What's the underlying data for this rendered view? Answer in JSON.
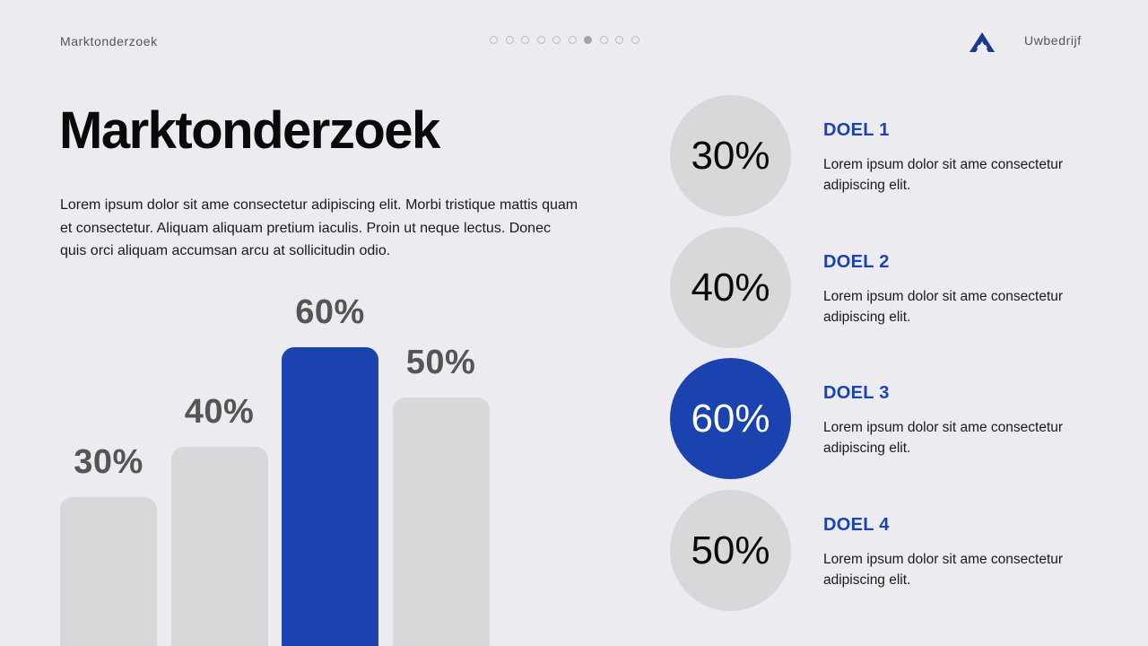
{
  "header": {
    "section_label": "Marktonderzoek",
    "company": "Uwbedrijf",
    "logo_icon": "triangle-logo-icon",
    "pager": {
      "total": 10,
      "active_index": 6
    }
  },
  "main": {
    "title": "Marktonderzoek",
    "intro": "Lorem ipsum dolor sit ame consectetur adipiscing elit. Morbi tristique mattis quam et consectetur. Aliquam aliquam pretium iaculis. Proin ut neque lectus. Donec quis orci aliquam accumsan arcu at sollicitudin odio."
  },
  "colors": {
    "accent": "#1b43b0",
    "neutral_bar": "#d8d8da",
    "background": "#ececf0"
  },
  "chart_data": {
    "type": "bar",
    "categories": [
      "DOEL 1",
      "DOEL 2",
      "DOEL 3",
      "DOEL 4"
    ],
    "values": [
      30,
      40,
      60,
      50
    ],
    "value_labels": [
      "30%",
      "40%",
      "60%",
      "50%"
    ],
    "highlight_index": 2
  },
  "goals": [
    {
      "percent": "30%",
      "title": "DOEL 1",
      "text": "Lorem ipsum dolor sit ame consectetur adipiscing elit."
    },
    {
      "percent": "40%",
      "title": "DOEL 2",
      "text": "Lorem ipsum dolor sit ame consectetur adipiscing elit."
    },
    {
      "percent": "60%",
      "title": "DOEL 3",
      "text": "Lorem ipsum dolor sit ame consectetur adipiscing elit."
    },
    {
      "percent": "50%",
      "title": "DOEL 4",
      "text": "Lorem ipsum dolor sit ame consectetur adipiscing elit."
    }
  ]
}
